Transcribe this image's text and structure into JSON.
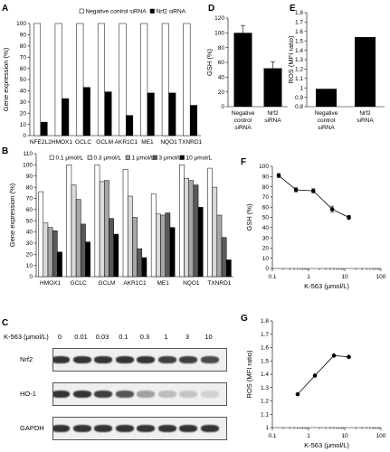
{
  "panel_labels": {
    "A": "A",
    "B": "B",
    "C": "C",
    "D": "D",
    "E": "E",
    "F": "F",
    "G": "G"
  },
  "colors": {
    "black": "#000000",
    "white": "#ffffff",
    "gray_light": "#d9d9d9",
    "gray_mid": "#a6a6a6",
    "gray_dark": "#595959"
  },
  "chart_data": [
    {
      "id": "A",
      "type": "bar",
      "categories": [
        "NFE2L2",
        "HMOX1",
        "GCLC",
        "GCLM",
        "AKR1C1",
        "ME1",
        "NQO1",
        "TXNRD1"
      ],
      "series": [
        {
          "name": "Negative control siRNA",
          "values": [
            100,
            100,
            100,
            100,
            100,
            100,
            100,
            100
          ],
          "color": "#ffffff"
        },
        {
          "name": "Nrf2 siRNA",
          "values": [
            12,
            33,
            43,
            39,
            18,
            38,
            38,
            27
          ],
          "color": "#000000"
        }
      ],
      "ylabel": "Gene expression (%)",
      "ylim": [
        0,
        100
      ],
      "yticks": [
        "0",
        "10",
        "20",
        "30",
        "40",
        "50",
        "60",
        "70",
        "80",
        "90",
        "100"
      ],
      "legend_position": "top"
    },
    {
      "id": "B",
      "type": "bar",
      "categories": [
        "HMOX1",
        "GCLC",
        "GCLM",
        "AKR1C1",
        "ME1",
        "NQO1",
        "TXNRD1"
      ],
      "series": [
        {
          "name": "0.1 μmol/L",
          "values": [
            76,
            100,
            100,
            96,
            74,
            100,
            97
          ],
          "color": "#ffffff"
        },
        {
          "name": "0.3 μmol/L",
          "values": [
            48,
            82,
            85,
            72,
            56,
            88,
            80
          ],
          "color": "#d9d9d9"
        },
        {
          "name": "1 μmol/L",
          "values": [
            44,
            69,
            86,
            53,
            55,
            86,
            55
          ],
          "color": "#a6a6a6"
        },
        {
          "name": "3 μmol/L",
          "values": [
            41,
            47,
            52,
            25,
            57,
            82,
            35
          ],
          "color": "#595959"
        },
        {
          "name": "10 μmol/L",
          "values": [
            22,
            31,
            38,
            17,
            44,
            62,
            15
          ],
          "color": "#000000"
        }
      ],
      "ylabel": "Gene expression (%)",
      "ylim": [
        0,
        110
      ],
      "yticks": [
        "0",
        "10",
        "20",
        "30",
        "40",
        "50",
        "60",
        "70",
        "80",
        "90",
        "100",
        "110"
      ],
      "legend_position": "top"
    },
    {
      "id": "D",
      "type": "bar",
      "categories": [
        "Negative control siRNA",
        "Nrf2 siRNA"
      ],
      "values": [
        100,
        52
      ],
      "errors": [
        10,
        9
      ],
      "ylabel": "GSH (%)",
      "ylim": [
        0,
        120
      ],
      "yticks": [
        "0",
        "20",
        "40",
        "60",
        "80",
        "100",
        "120"
      ]
    },
    {
      "id": "E",
      "type": "bar",
      "categories": [
        "Negative control siRNA",
        "Nrf2 siRNA"
      ],
      "values": [
        0.99,
        1.54
      ],
      "ylabel": "ROS (MFI ratio)",
      "ylim": [
        0.8,
        1.8
      ],
      "yticks": [
        "0.8",
        "0.9",
        "1",
        "1.1",
        "1.2",
        "1.3",
        "1.4",
        "1.5",
        "1.6",
        "1.7",
        "1.8"
      ]
    },
    {
      "id": "F",
      "type": "line",
      "x": [
        0.15,
        0.45,
        1.35,
        4.5,
        13
      ],
      "y": [
        91,
        77,
        76,
        58,
        50
      ],
      "errors": [
        2,
        2,
        2,
        3,
        2
      ],
      "xlabel": "K-563 (μmol/L)",
      "ylabel": "GSH (%)",
      "xscale": "log",
      "xlim": [
        0.1,
        100
      ],
      "xticks": [
        "0.1",
        "1",
        "10",
        "100"
      ],
      "ylim": [
        0,
        100
      ],
      "yticks": [
        "0",
        "10",
        "20",
        "30",
        "40",
        "50",
        "60",
        "70",
        "80",
        "90",
        "100"
      ]
    },
    {
      "id": "G",
      "type": "line",
      "x": [
        0.5,
        1.5,
        5,
        13
      ],
      "y": [
        1.25,
        1.39,
        1.54,
        1.53
      ],
      "xlabel": "K-563 (μmol/L)",
      "ylabel": "ROS (MFI ratio)",
      "xscale": "log",
      "xlim": [
        0.1,
        100
      ],
      "xticks": [
        "0.1",
        "1",
        "10",
        "100"
      ],
      "ylim": [
        1,
        1.8
      ],
      "yticks": [
        "1",
        "1.1",
        "1.2",
        "1.3",
        "1.4",
        "1.5",
        "1.6",
        "1.7",
        "1.8"
      ]
    }
  ],
  "western_blot": {
    "header_label": "K-563 (μmol/L)",
    "concentrations": [
      "0",
      "0.01",
      "0.03",
      "0.1",
      "0.3",
      "1",
      "3",
      "10"
    ],
    "rows": [
      {
        "label": "Nrf2",
        "intensities": [
          0.85,
          0.85,
          0.85,
          0.85,
          0.85,
          0.8,
          0.8,
          0.75
        ]
      },
      {
        "label": "HO-1",
        "intensities": [
          0.85,
          0.85,
          0.8,
          0.7,
          0.35,
          0.22,
          0.18,
          0.12
        ]
      },
      {
        "label": "GAPDH",
        "intensities": [
          0.85,
          0.85,
          0.85,
          0.85,
          0.85,
          0.85,
          0.85,
          0.85
        ]
      }
    ]
  }
}
